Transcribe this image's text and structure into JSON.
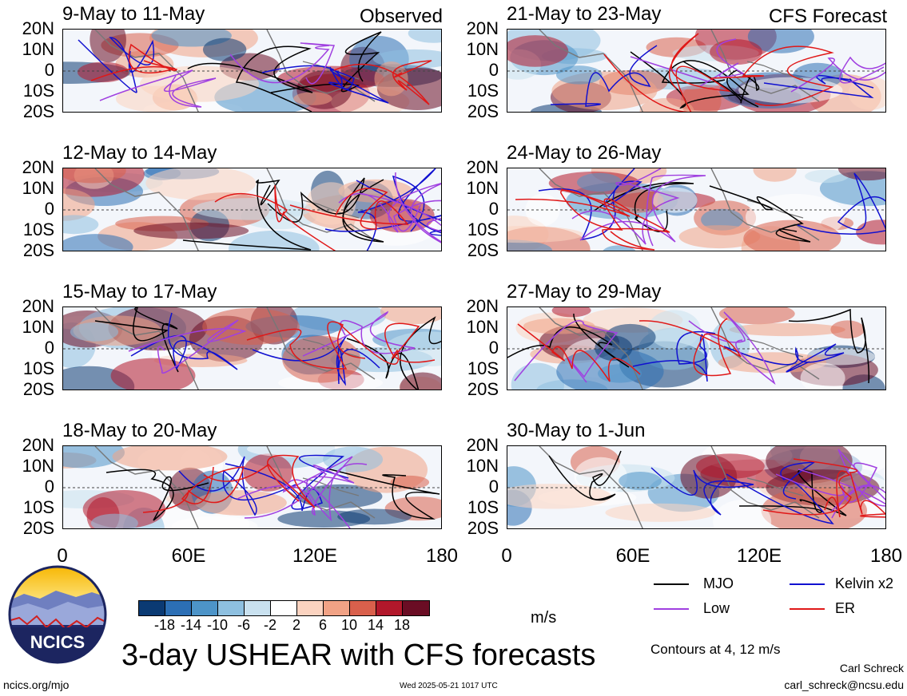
{
  "panels_left": [
    {
      "title": "9-May to 11-May",
      "tag": "Observed"
    },
    {
      "title": "12-May to 14-May",
      "tag": ""
    },
    {
      "title": "15-May to 17-May",
      "tag": ""
    },
    {
      "title": "18-May to 20-May",
      "tag": ""
    }
  ],
  "panels_right": [
    {
      "title": "21-May to 23-May",
      "tag": "CFS Forecast"
    },
    {
      "title": "24-May to 26-May",
      "tag": ""
    },
    {
      "title": "27-May to 29-May",
      "tag": ""
    },
    {
      "title": "30-May to 1-Jun",
      "tag": ""
    }
  ],
  "y_labels": [
    "20N",
    "10N",
    "0",
    "10S",
    "20S"
  ],
  "x_labels": [
    "0",
    "60E",
    "120E",
    "180"
  ],
  "legend": {
    "mjo": "MJO",
    "kelvin": "Kelvin x2",
    "low": "Low",
    "er": "ER"
  },
  "colors": {
    "mjo": "#000000",
    "kelvin": "#1010d0",
    "low": "#a040e0",
    "er": "#e01818"
  },
  "colorbar": {
    "ticks": [
      "-18",
      "-14",
      "-10",
      "-6",
      "-2",
      "2",
      "6",
      "10",
      "14",
      "18"
    ],
    "colors": [
      "#0b3a73",
      "#2c6fb5",
      "#4d94c8",
      "#8ec0e0",
      "#c9e1ef",
      "#ffffff",
      "#fbd3c0",
      "#f1a285",
      "#d9604c",
      "#b2182b",
      "#6a0d24"
    ],
    "units": "m/s"
  },
  "main_title": "3-day USHEAR with CFS forecasts",
  "contours_note": "Contours at 4, 12 m/s",
  "logo_text": "NCICS",
  "url": "ncics.org/mjo",
  "timestamp": "Wed 2025-05-21 1017 UTC",
  "author": "Carl Schreck",
  "email": "carl_schreck@ncsu.edu"
}
